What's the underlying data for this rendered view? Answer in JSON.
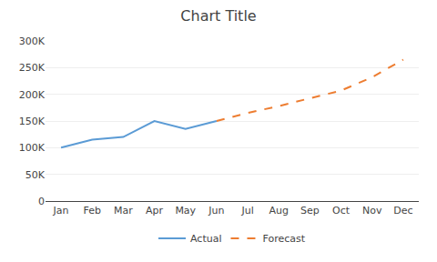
{
  "chart_data": {
    "type": "line",
    "title": "Chart Title",
    "categories": [
      "Jan",
      "Feb",
      "Mar",
      "Apr",
      "May",
      "Jun",
      "Jul",
      "Aug",
      "Sep",
      "Oct",
      "Nov",
      "Dec"
    ],
    "series": [
      {
        "name": "Actual",
        "color": "#5b9bd5",
        "line_style": "solid",
        "values": [
          100000,
          115000,
          120000,
          150000,
          135000,
          150000,
          null,
          null,
          null,
          null,
          null,
          null
        ]
      },
      {
        "name": "Forecast",
        "color": "#ed7d31",
        "line_style": "dashed",
        "values": [
          null,
          null,
          null,
          null,
          null,
          150000,
          165000,
          178000,
          192000,
          207000,
          232000,
          265000
        ]
      }
    ],
    "ylim": [
      0,
      300000
    ],
    "yticks": [
      0,
      {
        "value": 50000,
        "label": "50K"
      },
      {
        "value": 100000,
        "label": "100K"
      },
      {
        "value": 150000,
        "label": "150K"
      },
      {
        "value": 200000,
        "label": "200K"
      },
      {
        "value": 250000,
        "label": "250K"
      },
      {
        "value": 300000,
        "label": "300K"
      }
    ],
    "grid": true,
    "legend": "bottom"
  }
}
